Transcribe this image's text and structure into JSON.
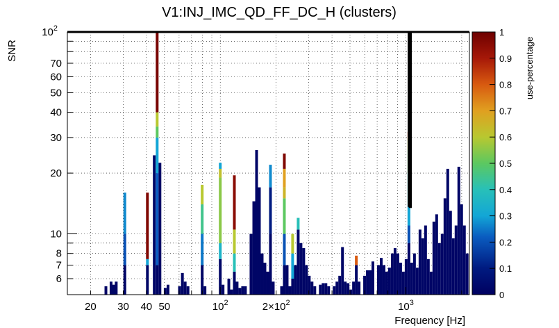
{
  "chart_data": {
    "type": "heatmap",
    "title": "V1:INJ_IMC_QD_FF_DC_H (clusters)",
    "xlabel": "Frequency [Hz]",
    "ylabel": "SNR",
    "x_scale": "log",
    "y_scale": "log",
    "xlim": [
      15,
      2200
    ],
    "ylim": [
      5,
      100
    ],
    "x_ticks": [
      {
        "value": 20,
        "label": "20"
      },
      {
        "value": 30,
        "label": "30"
      },
      {
        "value": 40,
        "label": "40"
      },
      {
        "value": 50,
        "label": "50"
      },
      {
        "value": 100,
        "label": "10",
        "sup": "2"
      },
      {
        "value": 200,
        "label": "2×10",
        "sup": "2"
      },
      {
        "value": 1000,
        "label": "10",
        "sup": "3"
      }
    ],
    "y_ticks": [
      {
        "value": 6,
        "label": "6"
      },
      {
        "value": 7,
        "label": "7"
      },
      {
        "value": 8,
        "label": "8"
      },
      {
        "value": 10,
        "label": "10"
      },
      {
        "value": 20,
        "label": "20"
      },
      {
        "value": 30,
        "label": "30"
      },
      {
        "value": 40,
        "label": "40"
      },
      {
        "value": 50,
        "label": "50"
      },
      {
        "value": 60,
        "label": "60"
      },
      {
        "value": 70,
        "label": "70"
      },
      {
        "value": 100,
        "label": "10",
        "sup": "2"
      }
    ],
    "grid": true,
    "colorbar": {
      "label": "use-percentage",
      "range": [
        0,
        1
      ],
      "ticks": [
        "0",
        "0.1",
        "0.2",
        "0.3",
        "0.4",
        "0.5",
        "0.6",
        "0.7",
        "0.8",
        "0.9",
        "1"
      ]
    },
    "columns": [
      {
        "f": 24.2,
        "segs": [
          [
            5.5,
            0.02
          ]
        ]
      },
      {
        "f": 25.8,
        "segs": [
          [
            5.8,
            0.02
          ]
        ]
      },
      {
        "f": 26.6,
        "segs": [
          [
            5.6,
            0.02
          ]
        ]
      },
      {
        "f": 27.5,
        "segs": [
          [
            5.8,
            0.02
          ]
        ]
      },
      {
        "f": 30.6,
        "segs": [
          [
            7,
            0.02
          ],
          [
            10,
            0.2
          ],
          [
            16,
            0.27
          ]
        ]
      },
      {
        "f": 40.5,
        "segs": [
          [
            7,
            0.02
          ],
          [
            7.5,
            0.3
          ],
          [
            16,
            0.97
          ]
        ]
      },
      {
        "f": 44.1,
        "segs": [
          [
            24.5,
            0.02
          ]
        ]
      },
      {
        "f": 45.7,
        "segs": [
          [
            7,
            0.02
          ],
          [
            20,
            0.22
          ],
          [
            30,
            0.3
          ],
          [
            34,
            0.5
          ],
          [
            40,
            0.6
          ],
          [
            100,
            0.98
          ]
        ]
      },
      {
        "f": 47.3,
        "segs": [
          [
            22.5,
            0.02
          ]
        ]
      },
      {
        "f": 50.5,
        "segs": [
          [
            5.4,
            0.02
          ]
        ]
      },
      {
        "f": 52.3,
        "segs": [
          [
            5.6,
            0.02
          ]
        ]
      },
      {
        "f": 60.3,
        "segs": [
          [
            5.5,
            0.02
          ]
        ]
      },
      {
        "f": 62.5,
        "segs": [
          [
            6.4,
            0.02
          ]
        ]
      },
      {
        "f": 64.7,
        "segs": [
          [
            5.8,
            0.02
          ]
        ]
      },
      {
        "f": 67.0,
        "segs": [
          [
            5.5,
            0.02
          ]
        ]
      },
      {
        "f": 79.9,
        "segs": [
          [
            7,
            0.02
          ],
          [
            10,
            0.25
          ],
          [
            14,
            0.45
          ],
          [
            17.5,
            0.6
          ]
        ]
      },
      {
        "f": 82.7,
        "segs": [
          [
            5.5,
            0.02
          ]
        ]
      },
      {
        "f": 100.0,
        "segs": [
          [
            7.5,
            0.02
          ],
          [
            9,
            0.35
          ],
          [
            19,
            0.55
          ],
          [
            21,
            0.62
          ],
          [
            22.5,
            0.3
          ]
        ]
      },
      {
        "f": 103.5,
        "segs": [
          [
            5.6,
            0.02
          ]
        ]
      },
      {
        "f": 111.2,
        "segs": [
          [
            6,
            0.02
          ]
        ]
      },
      {
        "f": 115.0,
        "segs": [
          [
            5.3,
            0.02
          ]
        ]
      },
      {
        "f": 119.1,
        "segs": [
          [
            6.5,
            0.02
          ],
          [
            8,
            0.4
          ],
          [
            10.5,
            0.6
          ],
          [
            19.5,
            0.95
          ]
        ]
      },
      {
        "f": 123.2,
        "segs": [
          [
            5.8,
            0.02
          ]
        ]
      },
      {
        "f": 127.5,
        "segs": [
          [
            5.4,
            0.02
          ]
        ]
      },
      {
        "f": 132.0,
        "segs": [
          [
            5.5,
            0.02
          ]
        ]
      },
      {
        "f": 136.6,
        "segs": [
          [
            5.5,
            0.02
          ]
        ]
      },
      {
        "f": 146.4,
        "segs": [
          [
            10,
            0.02
          ]
        ]
      },
      {
        "f": 151.6,
        "segs": [
          [
            14.5,
            0.02
          ]
        ]
      },
      {
        "f": 156.9,
        "segs": [
          [
            26,
            0.02
          ]
        ]
      },
      {
        "f": 162.4,
        "segs": [
          [
            17,
            0.02
          ]
        ]
      },
      {
        "f": 168.1,
        "segs": [
          [
            8,
            0.02
          ]
        ]
      },
      {
        "f": 174.0,
        "segs": [
          [
            7.2,
            0.02
          ]
        ]
      },
      {
        "f": 180.1,
        "segs": [
          [
            6.5,
            0.02
          ]
        ]
      },
      {
        "f": 186.4,
        "segs": [
          [
            10,
            0.02
          ],
          [
            17,
            0.1
          ],
          [
            22,
            0.27
          ]
        ]
      },
      {
        "f": 192.9,
        "segs": [
          [
            5.8,
            0.02
          ]
        ]
      },
      {
        "f": 214.0,
        "segs": [
          [
            5.5,
            0.02
          ]
        ]
      },
      {
        "f": 221.4,
        "segs": [
          [
            7,
            0.02
          ],
          [
            10,
            0.2
          ],
          [
            15,
            0.5
          ],
          [
            17,
            0.65
          ],
          [
            21,
            0.7
          ],
          [
            25,
            0.97
          ]
        ]
      },
      {
        "f": 229.2,
        "segs": [
          [
            7,
            0.02
          ]
        ]
      },
      {
        "f": 237.2,
        "segs": [
          [
            5.5,
            0.02
          ]
        ]
      },
      {
        "f": 245.4,
        "segs": [
          [
            6,
            0.02
          ],
          [
            8,
            0.3
          ],
          [
            10,
            0.6
          ]
        ]
      },
      {
        "f": 254.0,
        "segs": [
          [
            7,
            0.02
          ]
        ]
      },
      {
        "f": 262.9,
        "segs": [
          [
            10.5,
            0.02
          ],
          [
            12,
            0.4
          ]
        ]
      },
      {
        "f": 272.1,
        "segs": [
          [
            9,
            0.02
          ]
        ]
      },
      {
        "f": 281.6,
        "segs": [
          [
            8.5,
            0.02
          ]
        ]
      },
      {
        "f": 291.4,
        "segs": [
          [
            7,
            0.02
          ]
        ]
      },
      {
        "f": 301.6,
        "segs": [
          [
            6.2,
            0.02
          ]
        ]
      },
      {
        "f": 312.1,
        "segs": [
          [
            5.8,
            0.02
          ]
        ]
      },
      {
        "f": 323.0,
        "segs": [
          [
            5.5,
            0.02
          ]
        ]
      },
      {
        "f": 346.0,
        "segs": [
          [
            5.6,
            0.02
          ]
        ]
      },
      {
        "f": 358.2,
        "segs": [
          [
            5.7,
            0.02
          ]
        ]
      },
      {
        "f": 370.7,
        "segs": [
          [
            5.7,
            0.02
          ]
        ]
      },
      {
        "f": 383.6,
        "segs": [
          [
            5.5,
            0.02
          ]
        ]
      },
      {
        "f": 410.9,
        "segs": [
          [
            5.5,
            0.02
          ]
        ]
      },
      {
        "f": 425.3,
        "segs": [
          [
            5.8,
            0.02
          ]
        ]
      },
      {
        "f": 440.1,
        "segs": [
          [
            6.2,
            0.02
          ]
        ]
      },
      {
        "f": 455.5,
        "segs": [
          [
            8.6,
            0.02
          ]
        ]
      },
      {
        "f": 471.4,
        "segs": [
          [
            5.8,
            0.02
          ]
        ]
      },
      {
        "f": 487.9,
        "segs": [
          [
            5.7,
            0.02
          ]
        ]
      },
      {
        "f": 504.9,
        "segs": [
          [
            5.3,
            0.02
          ]
        ]
      },
      {
        "f": 522.5,
        "segs": [
          [
            5.8,
            0.02
          ]
        ]
      },
      {
        "f": 540.8,
        "segs": [
          [
            7,
            0.02
          ],
          [
            7.8,
            0.8
          ]
        ]
      },
      {
        "f": 559.6,
        "segs": [
          [
            5.8,
            0.02
          ]
        ]
      },
      {
        "f": 599.4,
        "segs": [
          [
            6.2,
            0.02
          ]
        ]
      },
      {
        "f": 620.4,
        "segs": [
          [
            6.6,
            0.02
          ]
        ]
      },
      {
        "f": 642.0,
        "segs": [
          [
            6.6,
            0.02
          ]
        ]
      },
      {
        "f": 664.4,
        "segs": [
          [
            7.3,
            0.02
          ]
        ]
      },
      {
        "f": 711.6,
        "segs": [
          [
            7,
            0.02
          ]
        ]
      },
      {
        "f": 736.5,
        "segs": [
          [
            7.6,
            0.02
          ]
        ]
      },
      {
        "f": 762.2,
        "segs": [
          [
            7,
            0.02
          ]
        ]
      },
      {
        "f": 788.8,
        "segs": [
          [
            6.5,
            0.02
          ]
        ]
      },
      {
        "f": 816.4,
        "segs": [
          [
            6.8,
            0.02
          ]
        ]
      },
      {
        "f": 845.0,
        "segs": [
          [
            8,
            0.02
          ]
        ]
      },
      {
        "f": 874.5,
        "segs": [
          [
            8.5,
            0.02
          ]
        ]
      },
      {
        "f": 905.1,
        "segs": [
          [
            8,
            0.02
          ]
        ]
      },
      {
        "f": 936.8,
        "segs": [
          [
            7.2,
            0.02
          ]
        ]
      },
      {
        "f": 969.6,
        "segs": [
          [
            6.5,
            0.02
          ]
        ]
      },
      {
        "f": 1003.5,
        "segs": [
          [
            7.5,
            0.02
          ]
        ]
      },
      {
        "f": 1038.6,
        "segs": [
          [
            9,
            0.02
          ],
          [
            11,
            0.2
          ],
          [
            14,
            0.3
          ],
          [
            20,
            0.4
          ],
          [
            26,
            0.5
          ],
          [
            29,
            0.6
          ],
          [
            30,
            0.7
          ],
          [
            32,
            0.85
          ]
        ]
      },
      {
        "f": 1074.9,
        "segs": [
          [
            7.2,
            0.02
          ]
        ]
      },
      {
        "f": 1112.6,
        "segs": [
          [
            8,
            0.02
          ]
        ]
      },
      {
        "f": 1151.5,
        "segs": [
          [
            6.8,
            0.02
          ]
        ]
      },
      {
        "f": 1191.8,
        "segs": [
          [
            10.5,
            0.02
          ]
        ]
      },
      {
        "f": 1233.6,
        "segs": [
          [
            9.5,
            0.02
          ]
        ]
      },
      {
        "f": 1276.7,
        "segs": [
          [
            11,
            0.02
          ]
        ]
      },
      {
        "f": 1321.4,
        "segs": [
          [
            7.5,
            0.02
          ]
        ]
      },
      {
        "f": 1367.7,
        "segs": [
          [
            6.5,
            0.02
          ]
        ]
      },
      {
        "f": 1415.5,
        "segs": [
          [
            11.5,
            0.02
          ]
        ]
      },
      {
        "f": 1465.1,
        "segs": [
          [
            12.5,
            0.02
          ]
        ]
      },
      {
        "f": 1516.4,
        "segs": [
          [
            9,
            0.02
          ]
        ]
      },
      {
        "f": 1569.4,
        "segs": [
          [
            10,
            0.02
          ]
        ]
      },
      {
        "f": 1624.4,
        "segs": [
          [
            15,
            0.02
          ]
        ]
      },
      {
        "f": 1681.2,
        "segs": [
          [
            21,
            0.02
          ]
        ]
      },
      {
        "f": 1740.1,
        "segs": [
          [
            13,
            0.02
          ]
        ]
      },
      {
        "f": 1801.0,
        "segs": [
          [
            9.5,
            0.02
          ]
        ]
      },
      {
        "f": 1864.0,
        "segs": [
          [
            11,
            0.02
          ]
        ]
      },
      {
        "f": 1929.2,
        "segs": [
          [
            21.5,
            0.02
          ]
        ]
      },
      {
        "f": 1996.8,
        "segs": [
          [
            14,
            0.02
          ]
        ]
      },
      {
        "f": 2066.7,
        "segs": [
          [
            11,
            0.02
          ]
        ]
      },
      {
        "f": 2139.0,
        "segs": [
          [
            8,
            0.02
          ]
        ]
      }
    ],
    "outline": {
      "f_low": 1036,
      "f_high": 1062,
      "snr_low": 13.6
    }
  }
}
